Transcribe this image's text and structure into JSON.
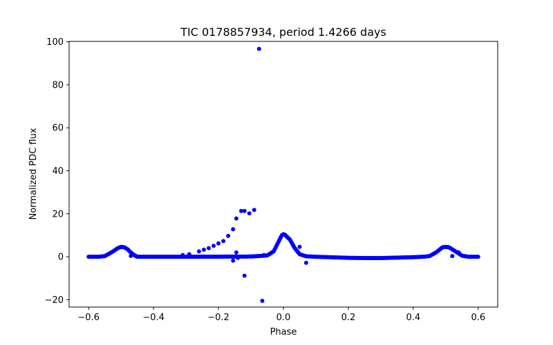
{
  "chart_data": {
    "type": "scatter",
    "title": "TIC 0178857934, period 1.4266 days",
    "xlabel": "Phase",
    "ylabel": "Normalized PDC flux",
    "xlim": [
      -0.66,
      0.66
    ],
    "ylim": [
      -23.4,
      100.2
    ],
    "xticks": [
      -0.6,
      -0.4,
      -0.2,
      0.0,
      0.2,
      0.4,
      0.6
    ],
    "xtick_labels": [
      "−0.6",
      "−0.4",
      "−0.2",
      "0.0",
      "0.2",
      "0.4",
      "0.6"
    ],
    "yticks": [
      -20,
      0,
      20,
      40,
      60,
      80,
      100
    ],
    "ytick_labels": [
      "−20",
      "0",
      "20",
      "40",
      "60",
      "80",
      "100"
    ],
    "grid": false,
    "marker_color": "#0000ff",
    "curve": [
      [
        -0.6,
        0.0
      ],
      [
        -0.57,
        0.0
      ],
      [
        -0.55,
        0.3
      ],
      [
        -0.53,
        2.0
      ],
      [
        -0.51,
        4.0
      ],
      [
        -0.5,
        4.6
      ],
      [
        -0.49,
        4.4
      ],
      [
        -0.48,
        3.5
      ],
      [
        -0.47,
        2.0
      ],
      [
        -0.46,
        0.8
      ],
      [
        -0.45,
        0.0
      ],
      [
        -0.3,
        0.0
      ],
      [
        -0.1,
        0.1
      ],
      [
        -0.05,
        0.6
      ],
      [
        -0.03,
        2.5
      ],
      [
        -0.015,
        7.0
      ],
      [
        -0.005,
        10.0
      ],
      [
        0.0,
        10.5
      ],
      [
        0.005,
        10.2
      ],
      [
        0.02,
        8.0
      ],
      [
        0.035,
        4.0
      ],
      [
        0.05,
        1.2
      ],
      [
        0.07,
        0.2
      ],
      [
        0.1,
        0.0
      ],
      [
        0.2,
        -0.5
      ],
      [
        0.25,
        -0.6
      ],
      [
        0.3,
        -0.6
      ],
      [
        0.35,
        -0.4
      ],
      [
        0.4,
        -0.2
      ],
      [
        0.43,
        0.0
      ],
      [
        0.45,
        0.3
      ],
      [
        0.47,
        2.0
      ],
      [
        0.49,
        4.4
      ],
      [
        0.5,
        4.6
      ],
      [
        0.51,
        4.4
      ],
      [
        0.53,
        2.5
      ],
      [
        0.55,
        0.5
      ],
      [
        0.57,
        0.0
      ],
      [
        0.6,
        0.0
      ]
    ],
    "points": [
      [
        -0.075,
        96.7
      ],
      [
        -0.09,
        21.8
      ],
      [
        -0.105,
        20.2
      ],
      [
        -0.12,
        21.3
      ],
      [
        -0.13,
        21.3
      ],
      [
        -0.145,
        17.8
      ],
      [
        -0.155,
        12.8
      ],
      [
        -0.17,
        9.7
      ],
      [
        -0.185,
        7.3
      ],
      [
        -0.2,
        6.2
      ],
      [
        -0.215,
        5.1
      ],
      [
        -0.23,
        4.0
      ],
      [
        -0.245,
        3.3
      ],
      [
        -0.26,
        2.5
      ],
      [
        -0.29,
        1.2
      ],
      [
        -0.31,
        0.8
      ],
      [
        -0.155,
        -1.8
      ],
      [
        -0.145,
        2.0
      ],
      [
        -0.12,
        -8.8
      ],
      [
        -0.065,
        -20.5
      ],
      [
        -0.47,
        0.4
      ],
      [
        0.05,
        4.6
      ],
      [
        0.045,
        2.2
      ],
      [
        0.055,
        1.0
      ],
      [
        0.07,
        -2.8
      ],
      [
        0.52,
        0.3
      ],
      [
        0.54,
        2.0
      ],
      [
        -0.14,
        -0.5
      ],
      [
        -0.095,
        0.2
      ],
      [
        -0.06,
        0.8
      ]
    ]
  }
}
